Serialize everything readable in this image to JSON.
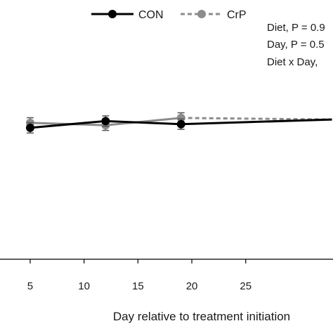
{
  "chart_data": {
    "type": "line",
    "xlabel": "Day relative to treatment initiation",
    "ylabel": "",
    "x_ticks": [
      5,
      10,
      15,
      20,
      25
    ],
    "xlim": [
      2.2,
      33.1
    ],
    "ylim": [
      0,
      100
    ],
    "legend_placement": "top",
    "series": [
      {
        "name": "CON",
        "color": "#000000",
        "line": "solid",
        "points": [
          {
            "x": 5,
            "y": 50.7,
            "err": 2.0
          },
          {
            "x": 12,
            "y": 53.3,
            "err": 2.0
          },
          {
            "x": 19,
            "y": 52.1,
            "err": 2.0
          },
          {
            "x": 33,
            "y": 53.9,
            "err": 0
          }
        ]
      },
      {
        "name": "CrP",
        "color": "#8c8c8c",
        "line": "solid-then-dashed",
        "points": [
          {
            "x": 5,
            "y": 52.6,
            "err": 2.0
          },
          {
            "x": 12,
            "y": 51.7,
            "err": 2.0
          },
          {
            "x": 19,
            "y": 54.5,
            "err": 2.0
          },
          {
            "x": 33,
            "y": 53.9,
            "err": 0
          }
        ]
      }
    ],
    "annotations": [
      "Diet, P = 0.9",
      "Day, P = 0.5",
      "Diet x Day,"
    ]
  }
}
